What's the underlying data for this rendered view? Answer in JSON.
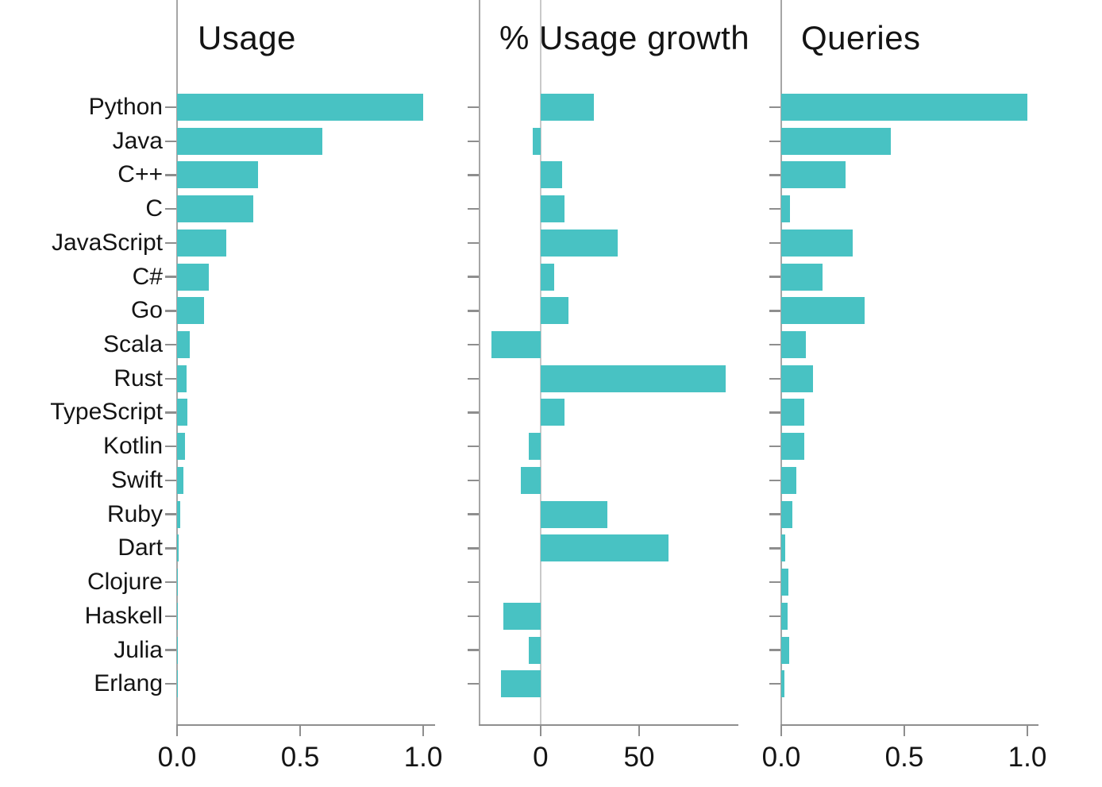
{
  "chart_data": {
    "type": "bar",
    "orientation": "horizontal",
    "bar_color": "#48c2c3",
    "axis_color": "#8e8e8e",
    "spine_color": "#a6a6a6",
    "zero_line_color": "#c9c9c9",
    "text_color": "#141414",
    "categories": [
      "Python",
      "Java",
      "C++",
      "C",
      "JavaScript",
      "C#",
      "Go",
      "Scala",
      "Rust",
      "TypeScript",
      "Kotlin",
      "Swift",
      "Ruby",
      "Dart",
      "Clojure",
      "Haskell",
      "Julia",
      "Erlang"
    ],
    "panels": [
      {
        "title": "Usage",
        "xlim": [
          0,
          1.045
        ],
        "xticks": [
          {
            "value": 0,
            "label": "0.0"
          },
          {
            "value": 0.5,
            "label": "0.5"
          },
          {
            "value": 1.0,
            "label": "1.0"
          }
        ],
        "zero_line": false,
        "values": [
          1.0,
          0.59,
          0.33,
          0.31,
          0.2,
          0.129,
          0.11,
          0.052,
          0.039,
          0.042,
          0.032,
          0.026,
          0.013,
          0.006,
          0.002,
          0.002,
          0.002,
          0.001
        ]
      },
      {
        "title": "% Usage growth",
        "xlim": [
          -31,
          100
        ],
        "xticks": [
          {
            "value": 0,
            "label": "0"
          },
          {
            "value": 50,
            "label": "50"
          }
        ],
        "zero_line": true,
        "values": [
          27,
          -4,
          11,
          12,
          39,
          7,
          14,
          -25,
          94,
          12,
          -6,
          -10,
          34,
          65,
          0,
          -19,
          -6,
          -20
        ]
      },
      {
        "title": "Queries",
        "xlim": [
          0,
          1.042
        ],
        "xticks": [
          {
            "value": 0,
            "label": "0.0"
          },
          {
            "value": 0.5,
            "label": "0.5"
          },
          {
            "value": 1.0,
            "label": "1.0"
          }
        ],
        "zero_line": false,
        "values": [
          1.0,
          0.445,
          0.26,
          0.035,
          0.29,
          0.168,
          0.34,
          0.1,
          0.13,
          0.092,
          0.092,
          0.061,
          0.045,
          0.016,
          0.028,
          0.025,
          0.031,
          0.012
        ]
      }
    ]
  }
}
